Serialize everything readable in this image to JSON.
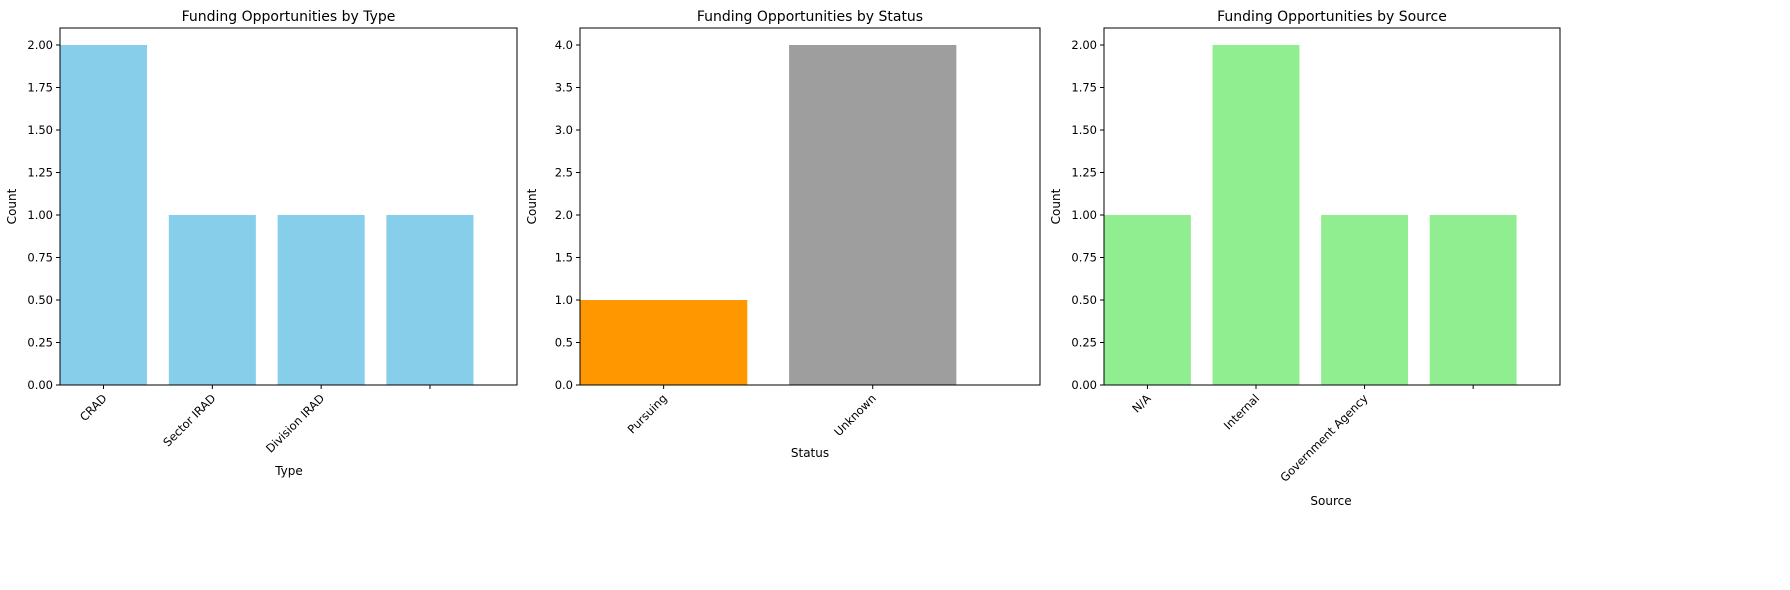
{
  "chart_data": [
    {
      "type": "bar",
      "title": "Funding Opportunities by Type",
      "xlabel": "Type",
      "ylabel": "Count",
      "categories": [
        "CRAD",
        "Sector IRAD",
        "Division IRAD",
        ""
      ],
      "values": [
        2,
        1,
        1,
        1
      ],
      "ylim": [
        0,
        2.1
      ],
      "yticks": [
        "0.00",
        "0.25",
        "0.50",
        "0.75",
        "1.00",
        "1.25",
        "1.50",
        "1.75",
        "2.00"
      ],
      "colors": [
        "#87ceeb",
        "#87ceeb",
        "#87ceeb",
        "#87ceeb"
      ],
      "grid": false,
      "legend": "none"
    },
    {
      "type": "bar",
      "title": "Funding Opportunities by Status",
      "xlabel": "Status",
      "ylabel": "Count",
      "categories": [
        "Pursuing",
        "Unknown"
      ],
      "values": [
        1,
        4
      ],
      "ylim": [
        0,
        4.2
      ],
      "yticks": [
        "0.0",
        "0.5",
        "1.0",
        "1.5",
        "2.0",
        "2.5",
        "3.0",
        "3.5",
        "4.0"
      ],
      "colors": [
        "#ff9800",
        "#9e9e9e"
      ],
      "grid": false,
      "legend": "none"
    },
    {
      "type": "bar",
      "title": "Funding Opportunities by Source",
      "xlabel": "Source",
      "ylabel": "Count",
      "categories": [
        "N/A",
        "Internal",
        "Government Agency",
        ""
      ],
      "values": [
        1,
        2,
        1,
        1
      ],
      "ylim": [
        0,
        2.1
      ],
      "yticks": [
        "0.00",
        "0.25",
        "0.50",
        "0.75",
        "1.00",
        "1.25",
        "1.50",
        "1.75",
        "2.00"
      ],
      "colors": [
        "#90ee90",
        "#90ee90",
        "#90ee90",
        "#90ee90"
      ],
      "grid": false,
      "legend": "none"
    }
  ]
}
